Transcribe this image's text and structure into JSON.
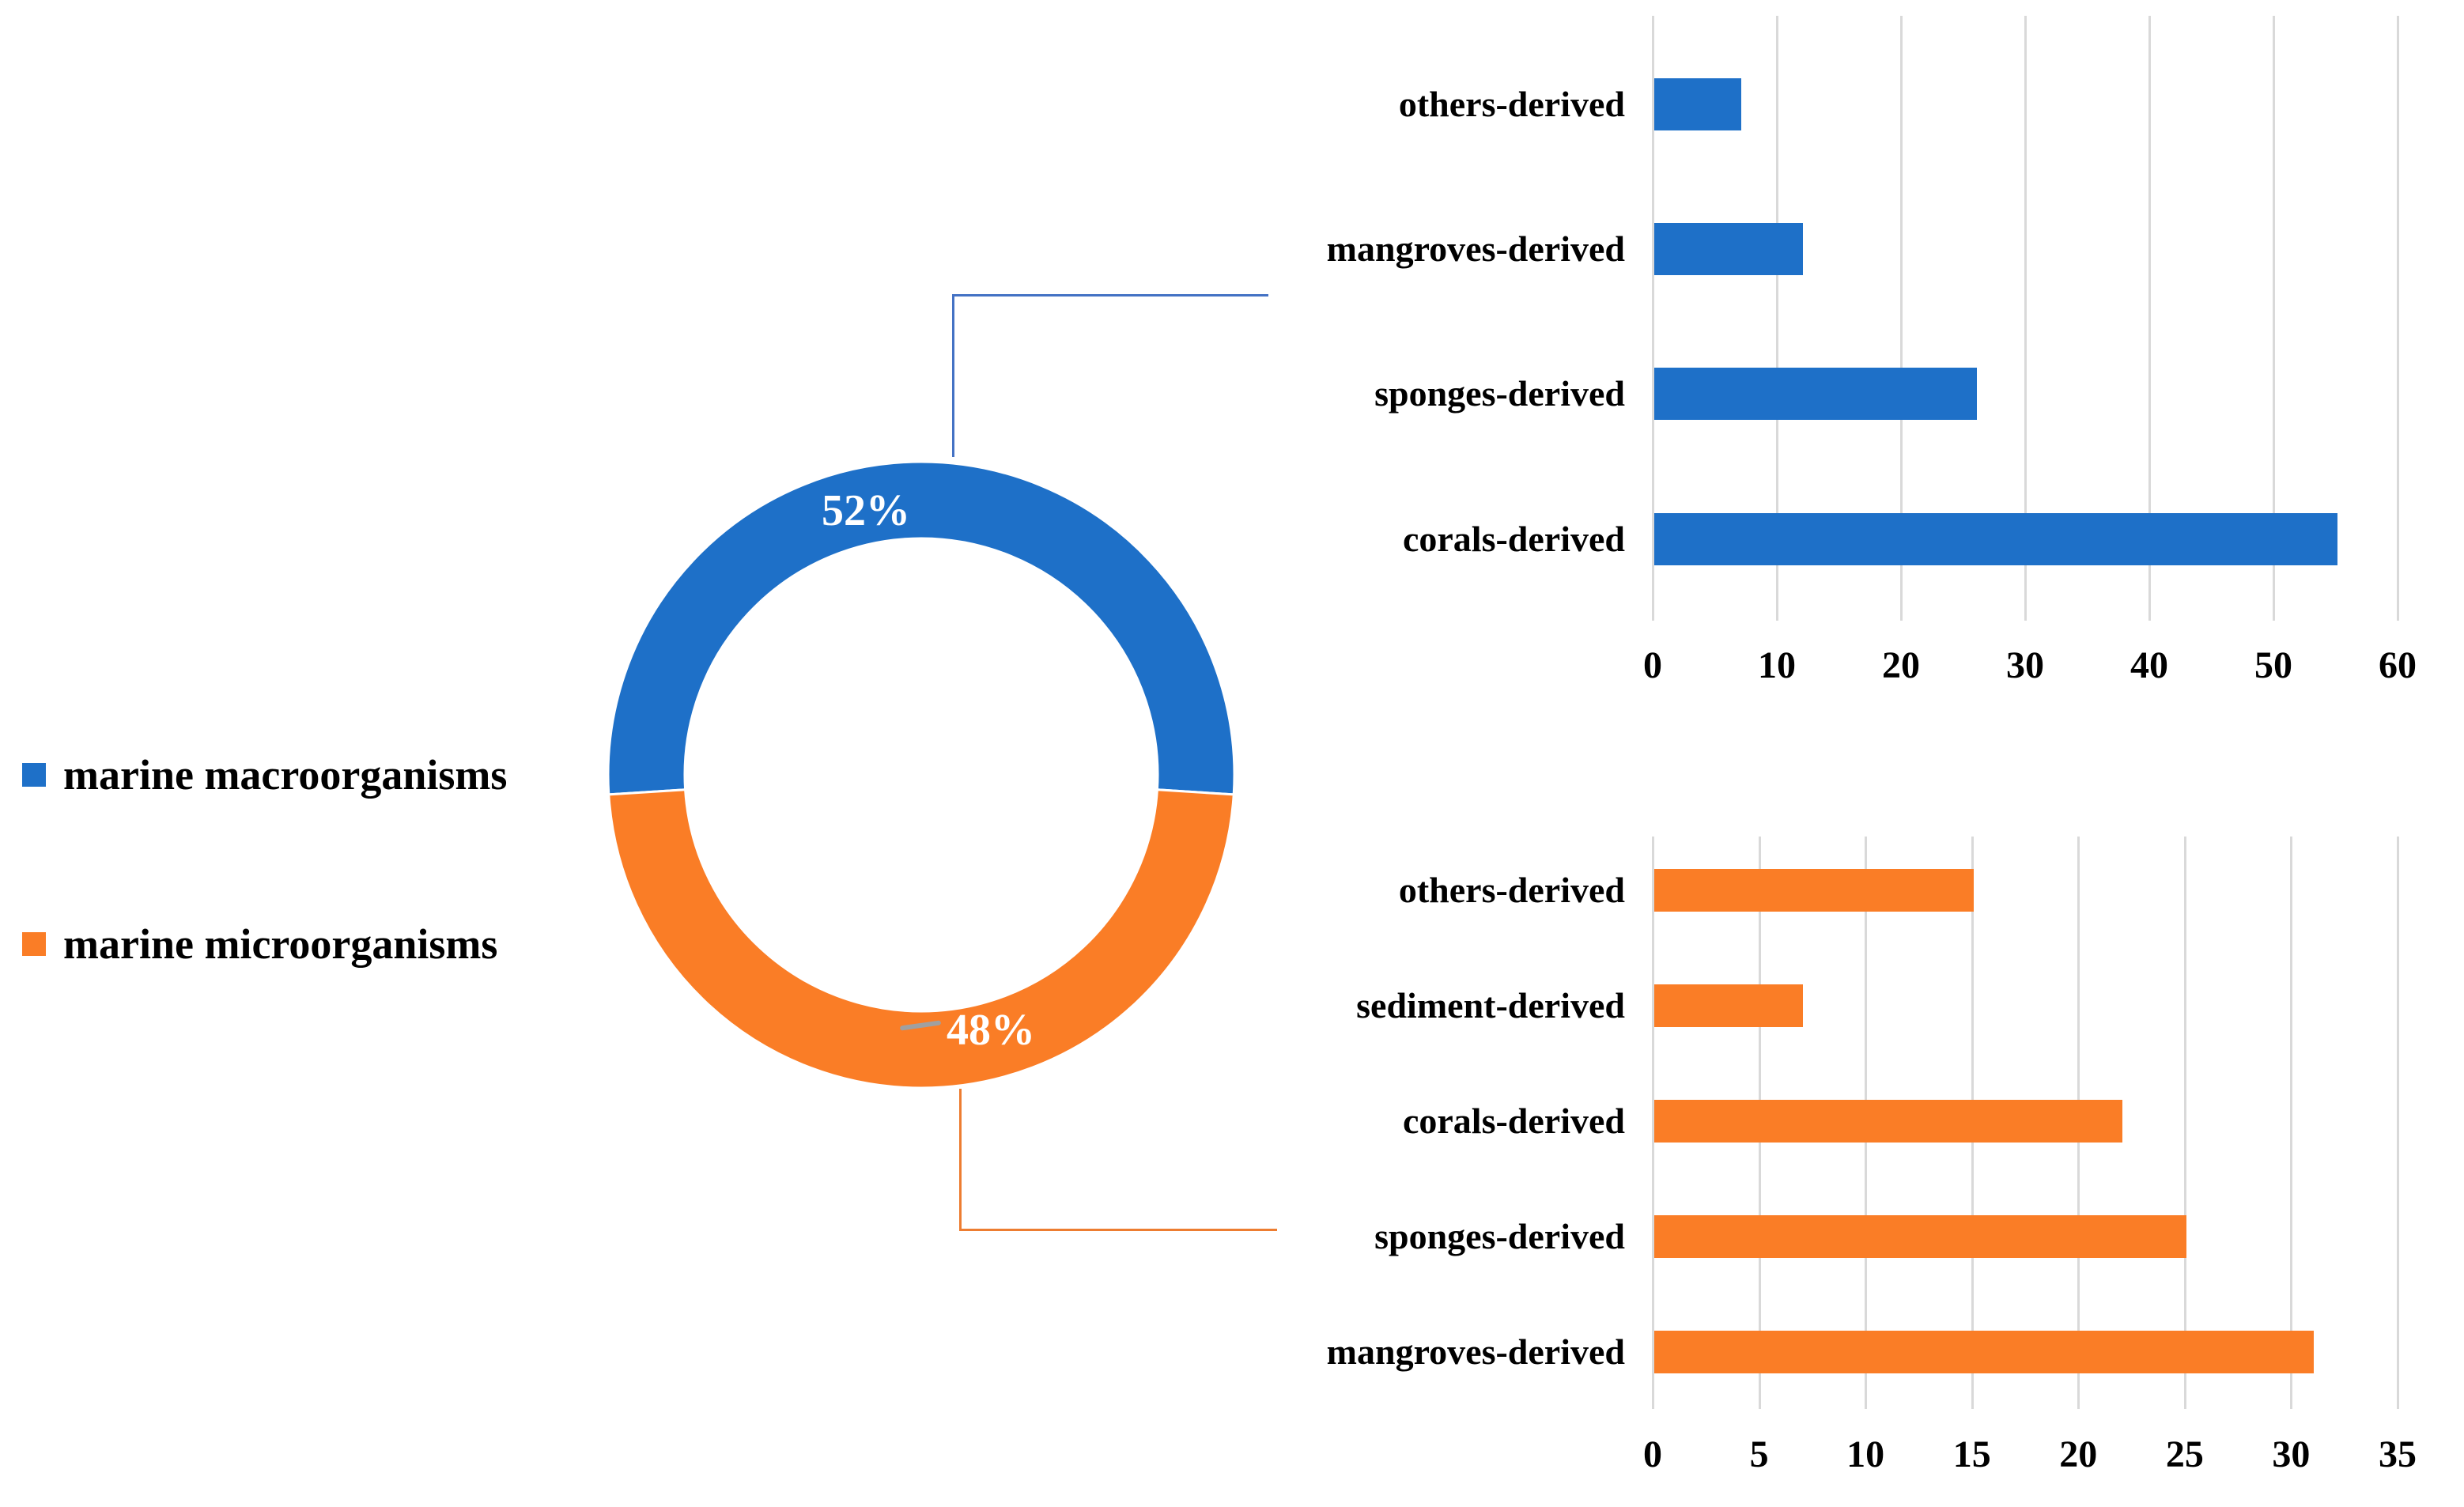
{
  "colors": {
    "macro_blue": "#1E70C8",
    "micro_orange": "#FA7D26",
    "connector_blue": "#4472C4",
    "connector_orange": "#ED7D31",
    "gridline_gray": "#D9D9D9",
    "leader_gray": "#A0A0A0",
    "text_black": "#000000",
    "pct_white": "#FFFFFF"
  },
  "legend": {
    "items": [
      {
        "label": "marine macroorganisms",
        "color": "#1E70C8"
      },
      {
        "label": "marine microorganisms",
        "color": "#FA7D26"
      }
    ]
  },
  "donut": {
    "labels": {
      "macro": "52%",
      "micro": "48%"
    }
  },
  "chart_data": [
    {
      "type": "pie",
      "subtype": "donut",
      "title": "",
      "labels": [
        "marine macroorganisms",
        "marine microorganisms"
      ],
      "values": [
        52,
        48
      ],
      "unit": "%",
      "colors": [
        "#1E70C8",
        "#FA7D26"
      ],
      "data_labels": [
        "52%",
        "48%"
      ],
      "start_angle_deg": -93.6,
      "legend_position": "left",
      "hole": true
    },
    {
      "type": "bar",
      "orientation": "horizontal",
      "group": "marine macroorganisms",
      "color": "#1E70C8",
      "categories": [
        "others-derived",
        "mangroves-derived",
        "sponges-derived",
        "corals-derived"
      ],
      "values": [
        7,
        12,
        26,
        55
      ],
      "xlim": [
        0,
        60
      ],
      "xticks": [
        0,
        10,
        20,
        30,
        40,
        50,
        60
      ],
      "grid": true,
      "title": "",
      "xlabel": "",
      "ylabel": ""
    },
    {
      "type": "bar",
      "orientation": "horizontal",
      "group": "marine microorganisms",
      "color": "#FA7D26",
      "categories": [
        "others-derived",
        "sediment-derived",
        "corals-derived",
        "sponges-derived",
        "mangroves-derived"
      ],
      "values": [
        15,
        7,
        22,
        25,
        31
      ],
      "xlim": [
        0,
        35
      ],
      "xticks": [
        0,
        5,
        10,
        15,
        20,
        25,
        30,
        35
      ],
      "grid": true,
      "title": "",
      "xlabel": "",
      "ylabel": ""
    }
  ]
}
